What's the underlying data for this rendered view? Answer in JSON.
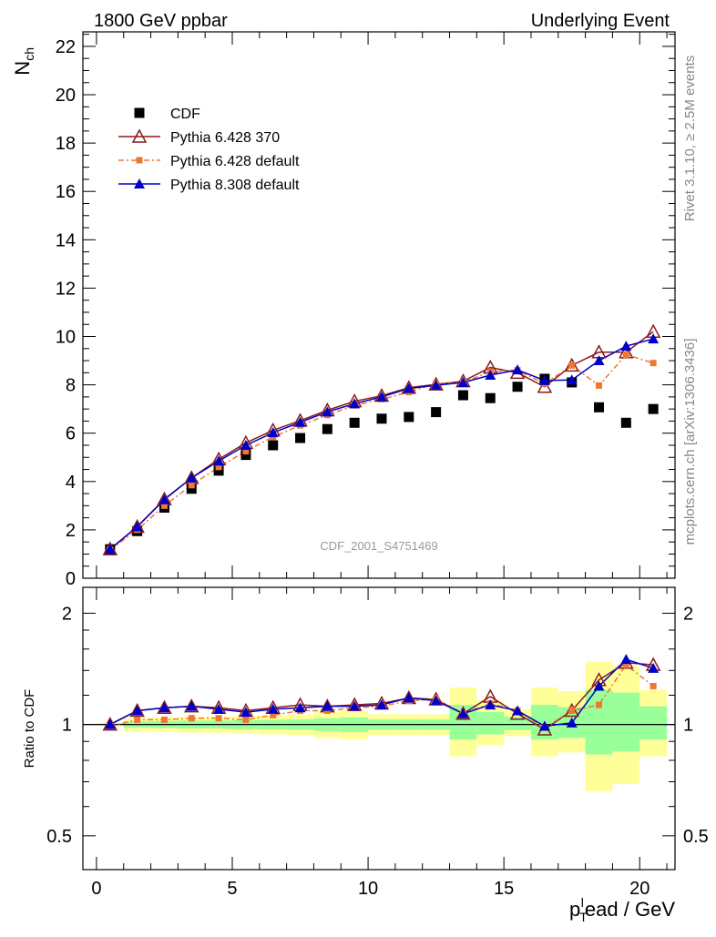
{
  "header": {
    "left": "1800 GeV ppbar",
    "right": "Underlying Event"
  },
  "side_text": {
    "top": "Rivet 3.1.10, ≥ 2.5M events",
    "bottom": "mcplots.cern.ch [arXiv:1306.3436]"
  },
  "analysis_id": "CDF_2001_S4751469",
  "chart_data": [
    {
      "type": "scatter",
      "panel": "main",
      "ylabel": "N",
      "ylabel_sub": "ch",
      "ylim": [
        0,
        22.6
      ],
      "yticks": [
        0,
        2,
        4,
        6,
        8,
        10,
        12,
        14,
        16,
        18,
        20,
        22
      ],
      "ytick_labels": [
        "0",
        "2",
        "4",
        "6",
        "8",
        "10",
        "12",
        "14",
        "16",
        "18",
        "20",
        "22"
      ],
      "xlim": [
        -0.5,
        21.3
      ],
      "x": [
        0.5,
        1.5,
        2.5,
        3.5,
        4.5,
        5.5,
        6.5,
        7.5,
        8.5,
        9.5,
        10.5,
        11.5,
        12.5,
        13.5,
        14.5,
        15.5,
        16.5,
        17.5,
        18.5,
        19.5,
        20.5
      ],
      "legend_position": "top-left",
      "series": [
        {
          "name": "CDF",
          "color": "#000000",
          "marker": "square",
          "values": [
            1.2,
            1.95,
            2.92,
            3.7,
            4.45,
            5.1,
            5.5,
            5.8,
            6.17,
            6.43,
            6.6,
            6.67,
            6.87,
            7.57,
            7.45,
            7.92,
            8.25,
            8.1,
            7.07,
            6.43,
            7.0
          ]
        },
        {
          "name": "Pythia 6.428 370",
          "color": "#8b1a1a",
          "marker": "open-triangle",
          "values": [
            1.2,
            2.13,
            3.27,
            4.15,
            4.92,
            5.6,
            6.12,
            6.52,
            6.95,
            7.32,
            7.55,
            7.88,
            8.02,
            8.15,
            8.72,
            8.5,
            7.92,
            8.8,
            9.35,
            9.35,
            10.2
          ]
        },
        {
          "name": "Pythia 6.428 default",
          "color": "#ee7733",
          "marker": "square",
          "values": [
            1.18,
            2.0,
            3.0,
            3.85,
            4.6,
            5.25,
            5.85,
            6.32,
            6.75,
            7.15,
            7.4,
            7.7,
            8.05,
            8.1,
            8.55,
            8.6,
            8.05,
            8.8,
            7.97,
            9.25,
            8.9
          ]
        },
        {
          "name": "Pythia 8.308 default",
          "color": "#0000cc",
          "marker": "triangle",
          "values": [
            1.2,
            2.13,
            3.25,
            4.15,
            4.85,
            5.5,
            6.02,
            6.45,
            6.88,
            7.22,
            7.5,
            7.85,
            7.98,
            8.1,
            8.4,
            8.62,
            8.18,
            8.2,
            9.0,
            9.6,
            9.9
          ]
        }
      ]
    },
    {
      "type": "scatter",
      "panel": "ratio",
      "ylabel": "Ratio to CDF",
      "scale": "log",
      "ylim": [
        0.405,
        2.35
      ],
      "yticks": [
        0.5,
        1,
        2
      ],
      "ytick_labels": [
        "0.5",
        "1",
        "2"
      ],
      "xlabel": "p",
      "xlabel_sub": "T",
      "xlabel_sup": "l",
      "xlabel_rest": "ead / GeV",
      "xlim": [
        -0.5,
        21.3
      ],
      "xticks": [
        0,
        5,
        10,
        15,
        20
      ],
      "xtick_labels": [
        "0",
        "5",
        "10",
        "15",
        "20"
      ],
      "x": [
        0.5,
        1.5,
        2.5,
        3.5,
        4.5,
        5.5,
        6.5,
        7.5,
        8.5,
        9.5,
        10.5,
        11.5,
        12.5,
        13.5,
        14.5,
        15.5,
        16.5,
        17.5,
        18.5,
        19.5,
        20.5
      ],
      "band_outer": {
        "color": "#ffff99",
        "lo": [
          0.99,
          0.96,
          0.955,
          0.95,
          0.95,
          0.945,
          0.94,
          0.935,
          0.92,
          0.91,
          0.935,
          0.935,
          0.935,
          0.82,
          0.88,
          0.93,
          0.82,
          0.84,
          0.66,
          0.69,
          0.82
        ],
        "hi": [
          1.01,
          1.04,
          1.045,
          1.05,
          1.05,
          1.055,
          1.06,
          1.065,
          1.08,
          1.09,
          1.065,
          1.065,
          1.065,
          1.26,
          1.16,
          1.1,
          1.26,
          1.23,
          1.48,
          1.44,
          1.24
        ]
      },
      "band_inner": {
        "color": "#99ff99",
        "lo": [
          0.995,
          0.98,
          0.978,
          0.975,
          0.975,
          0.972,
          0.97,
          0.968,
          0.96,
          0.955,
          0.968,
          0.968,
          0.968,
          0.91,
          0.94,
          0.965,
          0.91,
          0.92,
          0.83,
          0.845,
          0.91
        ],
        "hi": [
          1.005,
          1.02,
          1.022,
          1.025,
          1.025,
          1.028,
          1.03,
          1.032,
          1.04,
          1.045,
          1.032,
          1.032,
          1.032,
          1.13,
          1.08,
          1.05,
          1.13,
          1.115,
          1.24,
          1.22,
          1.12
        ]
      },
      "series": [
        {
          "name": "Pythia 6.428 370",
          "color": "#8b1a1a",
          "marker": "open-triangle",
          "values": [
            1.0,
            1.09,
            1.11,
            1.12,
            1.11,
            1.09,
            1.11,
            1.13,
            1.12,
            1.13,
            1.14,
            1.18,
            1.17,
            1.07,
            1.19,
            1.07,
            0.97,
            1.09,
            1.32,
            1.47,
            1.45
          ]
        },
        {
          "name": "Pythia 6.428 default",
          "color": "#ee7733",
          "marker": "square",
          "values": [
            0.99,
            1.03,
            1.03,
            1.04,
            1.04,
            1.03,
            1.06,
            1.09,
            1.09,
            1.11,
            1.12,
            1.16,
            1.17,
            1.07,
            1.14,
            1.09,
            0.98,
            1.09,
            1.13,
            1.45,
            1.27
          ]
        },
        {
          "name": "Pythia 8.308 default",
          "color": "#0000cc",
          "marker": "triangle",
          "values": [
            1.0,
            1.09,
            1.11,
            1.12,
            1.1,
            1.08,
            1.1,
            1.11,
            1.12,
            1.12,
            1.13,
            1.18,
            1.16,
            1.07,
            1.13,
            1.09,
            0.99,
            1.01,
            1.27,
            1.5,
            1.42
          ]
        }
      ]
    }
  ]
}
